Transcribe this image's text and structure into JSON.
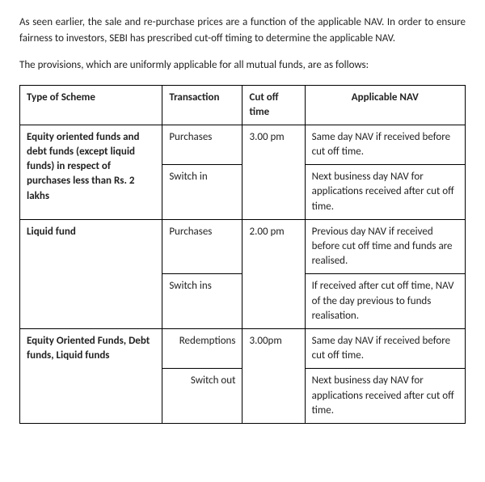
{
  "intro": {
    "p1": "As seen earlier, the sale and re-purchase prices are a function of the applicable NAV.  In order to ensure fairness to investors, SEBI has prescribed cut-off timing to determine the applicable NAV.",
    "p2": "The provisions, which are uniformly applicable for all mutual funds, are as follows:"
  },
  "table": {
    "headers": {
      "scheme": "Type of Scheme",
      "transaction": "Transaction",
      "cutoff": "Cut off time",
      "nav": "Applicable NAV"
    },
    "rows": {
      "r1": {
        "scheme": "Equity oriented funds and debt funds (except liquid funds) in respect of purchases less than Rs. 2 lakhs",
        "txn1": "Purchases",
        "txn2": "Switch in",
        "cutoff": "3.00 pm",
        "nav1": "Same day NAV if received before cut off time.",
        "nav2": "Next business day NAV for applications received after cut off time."
      },
      "r2": {
        "scheme": "Liquid fund",
        "txn1": "Purchases",
        "txn2": "Switch ins",
        "cutoff": "2.00 pm",
        "nav1": "Previous day NAV if received before cut off time and funds are realised.",
        "nav2": "If received after cut off time, NAV of the day previous to funds realisation."
      },
      "r3": {
        "scheme": "Equity Oriented Funds, Debt funds, Liquid funds",
        "txn1": "Redemptions",
        "txn2": "Switch out",
        "cutoff": "3.00pm",
        "nav1": "Same day NAV if received before cut off time.",
        "nav2": "Next business day NAV for applications received after cut off time."
      }
    }
  }
}
